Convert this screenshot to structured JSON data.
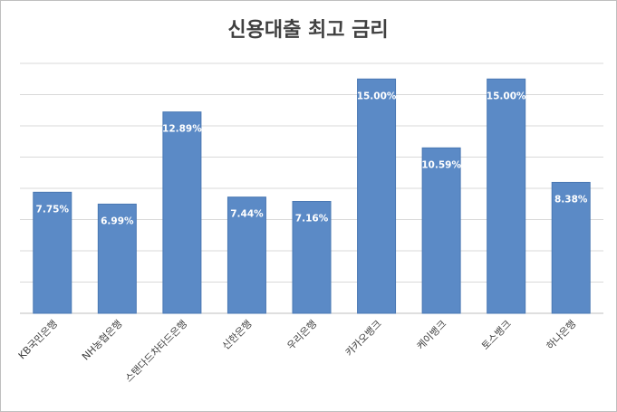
{
  "chart_data": {
    "type": "bar",
    "title": "신용대출 최고 금리",
    "categories": [
      "KB국민은행",
      "NH농협은행",
      "스탠다드차타드은행",
      "신한은행",
      "우리은행",
      "카카오뱅크",
      "케이뱅크",
      "토스뱅크",
      "하나은행"
    ],
    "values": [
      7.75,
      6.99,
      12.89,
      7.44,
      7.16,
      15.0,
      10.59,
      15.0,
      8.38
    ],
    "value_labels": [
      "7.75%",
      "6.99%",
      "12.89%",
      "7.44%",
      "7.16%",
      "15.00%",
      "10.59%",
      "15.00%",
      "8.38%"
    ],
    "color": "#5b8ac6",
    "ylim": [
      0,
      16
    ],
    "yticks": [
      0,
      2,
      4,
      6,
      8,
      10,
      12,
      14,
      16
    ],
    "grid": true
  }
}
